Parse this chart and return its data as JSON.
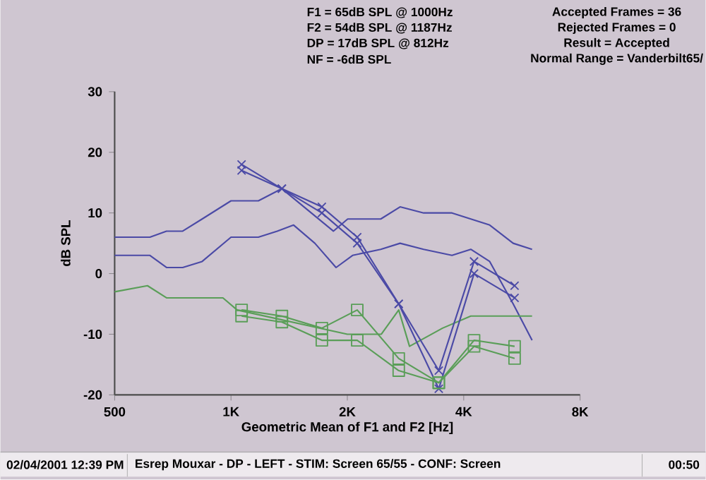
{
  "chart_data": {
    "type": "line",
    "xlabel": "Geometric Mean of F1 and F2 [Hz]",
    "ylabel": "dB SPL",
    "log": "x",
    "xlim": [
      500,
      8000
    ],
    "ylim": [
      -20,
      30
    ],
    "xticks": [
      {
        "value": 500,
        "label": "500"
      },
      {
        "value": 1000,
        "label": "1K"
      },
      {
        "value": 2000,
        "label": "2K"
      },
      {
        "value": 4000,
        "label": "4K"
      },
      {
        "value": 8000,
        "label": "8K"
      }
    ],
    "yticks": [
      -20,
      -10,
      0,
      10,
      20,
      30
    ],
    "annotations": [
      "F1 = 65dB SPL @ 1000Hz",
      "F2 = 54dB SPL @ 1187Hz",
      "DP = 17dB SPL @ 812Hz",
      "NF = -6dB SPL",
      "Accepted Frames = 36",
      "Rejected Frames = 0",
      "Result = Accepted",
      "Normal Range = Vanderbilt65/",
      "02/04/2001 12:39 PM",
      "Esrep Mouxar - DP - LEFT - STIM: Screen 65/55 - CONF: Screen",
      "00:50"
    ],
    "series": [
      {
        "color": "#4b4aa6",
        "marker": "none",
        "x": [
          500,
          617,
          681,
          750,
          842,
          1000,
          1177,
          1354,
          1840,
          2004,
          2440,
          2738,
          3151,
          3730,
          4669,
          5370,
          6010
        ],
        "values": [
          6,
          6,
          7,
          7,
          9,
          12,
          12,
          14,
          7,
          9,
          9,
          11,
          10,
          10,
          8,
          5,
          4
        ]
      },
      {
        "color": "#4b4aa6",
        "marker": "none",
        "x": [
          500,
          617,
          681,
          750,
          842,
          1000,
          1177,
          1317,
          1452,
          1648,
          1870,
          2063,
          2440,
          2738,
          3151,
          3730,
          4172,
          4669,
          5370,
          6010
        ],
        "values": [
          3,
          3,
          1,
          1,
          2,
          6,
          6,
          7,
          8,
          5,
          1,
          3,
          4,
          5,
          4,
          3,
          4,
          2,
          -5,
          -11
        ]
      },
      {
        "color": "#5a9e58",
        "marker": "none",
        "x": [
          500,
          608,
          681,
          953,
          1037,
          2000,
          2449,
          2716,
          2896,
          3526,
          4172,
          6010
        ],
        "values": [
          -3,
          -2,
          -4,
          -4,
          -6,
          -10,
          -10,
          -6,
          -12,
          -9,
          -7,
          -7
        ]
      },
      {
        "color": "#4b4aa6",
        "marker": "cross",
        "x": [
          1065,
          1354,
          1718,
          2121,
          2716,
          3448,
          4254,
          5416
        ],
        "values": [
          18,
          14,
          11,
          6,
          -5,
          -16,
          2,
          -2
        ]
      },
      {
        "color": "#4b4aa6",
        "marker": "cross",
        "x": [
          1065,
          1354,
          1718,
          2121,
          2716,
          3448,
          4254,
          5416
        ],
        "values": [
          17,
          14,
          10,
          5,
          -5,
          -19,
          0,
          -4
        ]
      },
      {
        "color": "#5a9e58",
        "marker": "square",
        "x": [
          1065,
          1354,
          1718,
          2121,
          2716,
          3448,
          4254,
          5416
        ],
        "values": [
          -6,
          -7,
          -9,
          -6,
          -14,
          -18,
          -11,
          -12
        ]
      },
      {
        "color": "#5a9e58",
        "marker": "square",
        "x": [
          1065,
          1354,
          1718,
          2121,
          2716,
          3448,
          4254,
          5416
        ],
        "values": [
          -7,
          -8,
          -11,
          -11,
          -16,
          -18,
          -12,
          -14
        ]
      }
    ]
  }
}
